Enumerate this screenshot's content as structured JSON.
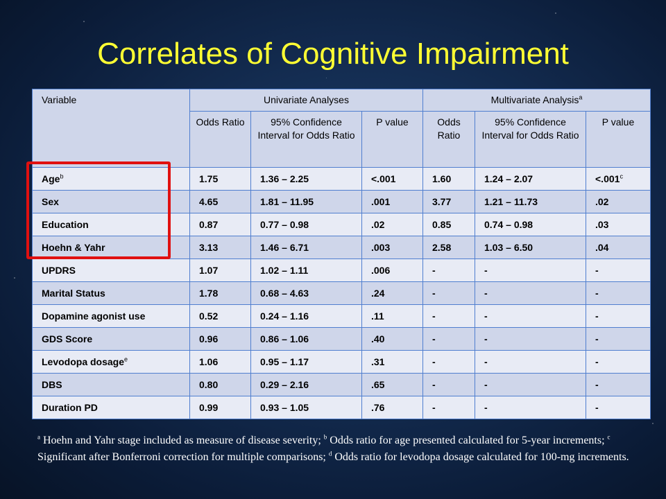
{
  "title": "Correlates of Cognitive Impairment",
  "table": {
    "header_variable": "Variable",
    "header_univariate": "Univariate Analyses",
    "header_multivariate": "Multivariate Analysis",
    "header_multivariate_sup": "a",
    "sub_odds": "Odds Ratio",
    "sub_ci": "95% Confidence Interval for Odds Ratio",
    "sub_p": "P value",
    "rows": [
      {
        "var": "Age",
        "sup": "b",
        "or1": "1.75",
        "ci1": "1.36 – 2.25",
        "p1": "<.001",
        "or2": "1.60",
        "ci2": "1.24 – 2.07",
        "p2": "<.001",
        "p2sup": "c"
      },
      {
        "var": "Sex",
        "or1": "4.65",
        "ci1": "1.81 – 11.95",
        "p1": ".001",
        "or2": "3.77",
        "ci2": "1.21 – 11.73",
        "p2": ".02"
      },
      {
        "var": "Education",
        "or1": "0.87",
        "ci1": "0.77 – 0.98",
        "p1": ".02",
        "or2": "0.85",
        "ci2": "0.74 – 0.98",
        "p2": ".03"
      },
      {
        "var": "Hoehn & Yahr",
        "or1": "3.13",
        "ci1": "1.46 – 6.71",
        "p1": ".003",
        "or2": "2.58",
        "ci2": "1.03 – 6.50",
        "p2": ".04"
      },
      {
        "var": "UPDRS",
        "or1": "1.07",
        "ci1": "1.02 – 1.11",
        "p1": ".006",
        "or2": "-",
        "ci2": "-",
        "p2": "-"
      },
      {
        "var": "Marital Status",
        "or1": "1.78",
        "ci1": "0.68 – 4.63",
        "p1": ".24",
        "or2": "-",
        "ci2": "-",
        "p2": "-"
      },
      {
        "var": "Dopamine agonist use",
        "or1": "0.52",
        "ci1": "0.24 – 1.16",
        "p1": ".11",
        "or2": "-",
        "ci2": "-",
        "p2": "-"
      },
      {
        "var": "GDS Score",
        "or1": "0.96",
        "ci1": "0.86 – 1.06",
        "p1": ".40",
        "or2": "-",
        "ci2": "-",
        "p2": "-"
      },
      {
        "var": "Levodopa dosage",
        "sup": "e",
        "or1": "1.06",
        "ci1": "0.95 – 1.17",
        "p1": ".31",
        "or2": "-",
        "ci2": "-",
        "p2": "-"
      },
      {
        "var": "DBS",
        "or1": "0.80",
        "ci1": "0.29 – 2.16",
        "p1": ".65",
        "or2": "-",
        "ci2": "-",
        "p2": "-"
      },
      {
        "var": "Duration PD",
        "or1": "0.99",
        "ci1": "0.93 – 1.05",
        "p1": ".76",
        "or2": "-",
        "ci2": "-",
        "p2": "-"
      }
    ]
  },
  "footnote": {
    "a_mark": "a",
    "a_text": " Hoehn and Yahr stage included as measure of disease severity; ",
    "b_mark": "b",
    "b_text": " Odds ratio for age presented calculated for 5-year increments; ",
    "c_mark": "c",
    "c_text": " Significant after Bonferroni correction for multiple comparisons; ",
    "d_mark": "d",
    "d_text": " Odds ratio for levodopa dosage calculated for 100-mg increments."
  },
  "colors": {
    "title": "#ffff33",
    "highlight": "#e01010",
    "table_border": "#4f7ecf",
    "row_light": "#e8ebf5",
    "row_dark": "#cfd6ea"
  }
}
